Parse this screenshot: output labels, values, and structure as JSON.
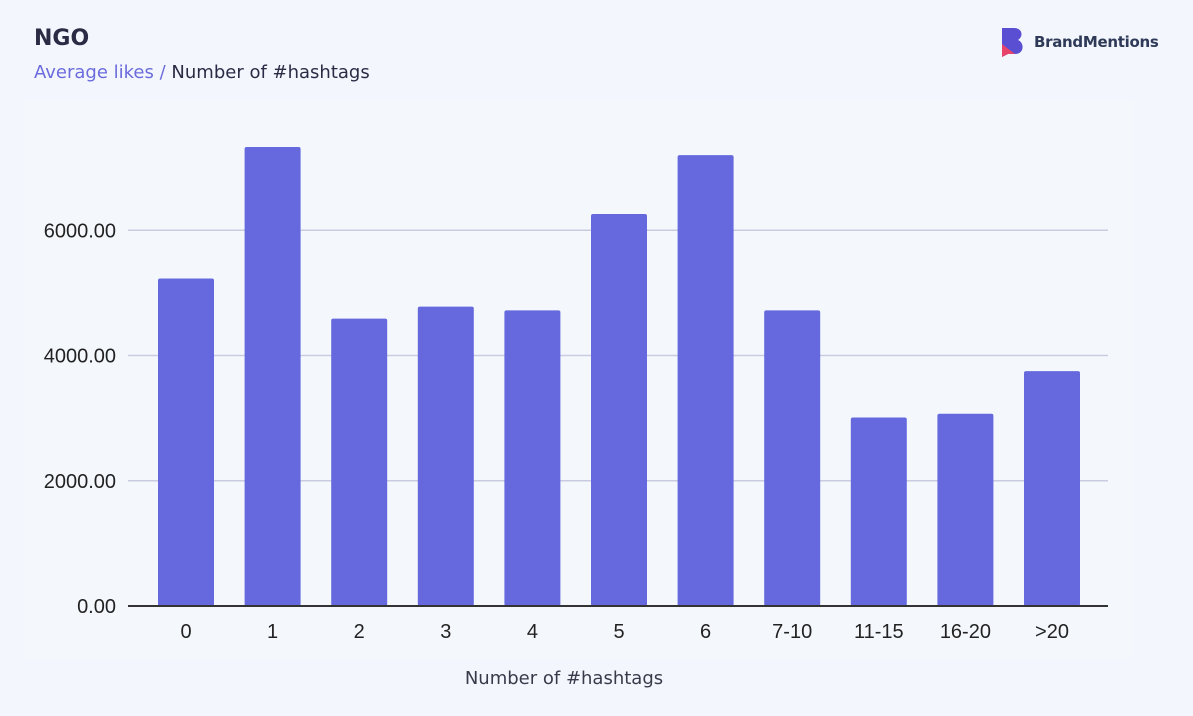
{
  "header": {
    "title": "NGO",
    "subtitle_metric": "Average likes",
    "subtitle_separator": "/",
    "subtitle_dimension": "Number of #hashtags",
    "brand": "BrandMentions",
    "brand_icon": "brandmentions-logo-icon"
  },
  "colors": {
    "bar": "#6569dd",
    "grid": "#c9cbe0",
    "axis": "#333333",
    "title": "#2b2b45",
    "accent": "#6b6bdc",
    "background": "#f3f7fd"
  },
  "chart_data": {
    "type": "bar",
    "title": "NGO",
    "subtitle": "Average likes / Number of #hashtags",
    "xlabel": "Number of #hashtags",
    "ylabel": "",
    "categories": [
      "0",
      "1",
      "2",
      "3",
      "4",
      "5",
      "6",
      "7-10",
      "11-15",
      "16-20",
      ">20"
    ],
    "values": [
      5230,
      7330,
      4590,
      4780,
      4720,
      6260,
      7200,
      4720,
      3010,
      3070,
      3750
    ],
    "ylim": [
      0,
      7330
    ],
    "yticks": [
      0,
      2000,
      4000,
      6000
    ],
    "ytick_labels": [
      "0.00",
      "2000.00",
      "4000.00",
      "6000.00"
    ],
    "grid": true,
    "legend": "none"
  }
}
